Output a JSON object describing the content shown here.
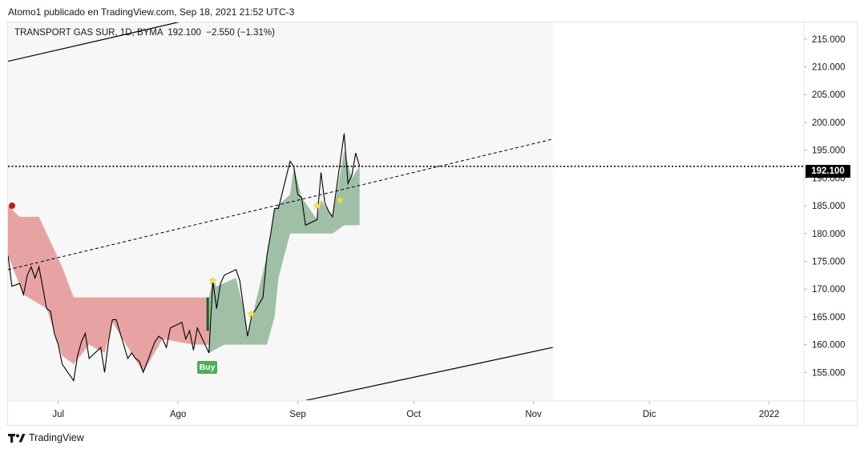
{
  "header": {
    "publisher_line": "Atomo1 publicado en TradingView.com, Sep 18, 2021 21:52 UTC-3"
  },
  "legend": {
    "text": "TRANSPORT GAS SUR, 1D, BYMA  192.100  −2.550 (−1.31%)"
  },
  "last_price": "192.100",
  "buy_label": "Buy",
  "footer": {
    "brand": "TradingView",
    "logo_icon": "tradingview-logo-icon"
  },
  "colors": {
    "price_line": "#000000",
    "bear_band": "#e7a3a3",
    "bull_band": "#9fbfa6",
    "dot_red": "#b71c1c",
    "star": "#f4e04d",
    "buy": "#4caf50",
    "grid_bg": "#f7f7f7"
  },
  "chart_data": {
    "type": "line",
    "title": "TRANSPORT GAS SUR, 1D, BYMA",
    "symbol_info": "192.100 −2.550 (−1.31%)",
    "x_ticks": [
      "Jul",
      "Ago",
      "Sep",
      "Oct",
      "Nov",
      "Dic",
      "2022"
    ],
    "y_ticks": [
      "155.000",
      "160.000",
      "165.000",
      "170.000",
      "175.000",
      "180.000",
      "185.000",
      "190.000",
      "195.000",
      "200.000",
      "205.000",
      "210.000",
      "215.000"
    ],
    "ylim": [
      150,
      218
    ],
    "xlim": [
      "2021-06-18",
      "2022-01-10"
    ],
    "last_price": 192.1,
    "series": [
      {
        "type": "close",
        "points": [
          [
            "2021-06-18",
            176.0
          ],
          [
            "2021-06-19",
            170.5
          ],
          [
            "2021-06-21",
            171.0
          ],
          [
            "2021-06-22",
            169.0
          ],
          [
            "2021-06-23",
            172.5
          ],
          [
            "2021-06-24",
            174.0
          ],
          [
            "2021-06-25",
            172.0
          ],
          [
            "2021-06-26",
            174.0
          ],
          [
            "2021-06-28",
            166.5
          ],
          [
            "2021-06-29",
            166.0
          ],
          [
            "2021-06-30",
            162.0
          ],
          [
            "2021-07-01",
            160.0
          ],
          [
            "2021-07-02",
            156.5
          ],
          [
            "2021-07-05",
            153.5
          ],
          [
            "2021-07-06",
            158.0
          ],
          [
            "2021-07-07",
            160.5
          ],
          [
            "2021-07-08",
            162.0
          ],
          [
            "2021-07-09",
            157.5
          ],
          [
            "2021-07-12",
            159.5
          ],
          [
            "2021-07-13",
            155.0
          ],
          [
            "2021-07-14",
            160.5
          ],
          [
            "2021-07-15",
            164.5
          ],
          [
            "2021-07-16",
            164.5
          ],
          [
            "2021-07-19",
            157.5
          ],
          [
            "2021-07-20",
            158.5
          ],
          [
            "2021-07-21",
            157.5
          ],
          [
            "2021-07-22",
            157.0
          ],
          [
            "2021-07-23",
            155.0
          ],
          [
            "2021-07-26",
            160.5
          ],
          [
            "2021-07-27",
            161.5
          ],
          [
            "2021-07-28",
            161.0
          ],
          [
            "2021-07-29",
            159.5
          ],
          [
            "2021-07-30",
            163.0
          ],
          [
            "2021-08-02",
            164.0
          ],
          [
            "2021-08-03",
            161.0
          ],
          [
            "2021-08-04",
            162.5
          ],
          [
            "2021-08-05",
            159.0
          ],
          [
            "2021-08-06",
            163.0
          ],
          [
            "2021-08-09",
            158.5
          ],
          [
            "2021-08-10",
            171.5
          ],
          [
            "2021-08-11",
            166.5
          ],
          [
            "2021-08-12",
            171.0
          ],
          [
            "2021-08-13",
            172.5
          ],
          [
            "2021-08-16",
            173.5
          ],
          [
            "2021-08-17",
            171.5
          ],
          [
            "2021-08-18",
            166.5
          ],
          [
            "2021-08-19",
            161.5
          ],
          [
            "2021-08-20",
            165.0
          ],
          [
            "2021-08-23",
            168.5
          ],
          [
            "2021-08-24",
            176.0
          ],
          [
            "2021-08-25",
            180.0
          ],
          [
            "2021-08-26",
            184.5
          ],
          [
            "2021-08-27",
            184.5
          ],
          [
            "2021-08-30",
            193.0
          ],
          [
            "2021-08-31",
            192.0
          ],
          [
            "2021-09-01",
            187.0
          ],
          [
            "2021-09-02",
            186.5
          ],
          [
            "2021-09-03",
            181.5
          ],
          [
            "2021-09-06",
            182.5
          ],
          [
            "2021-09-07",
            191.0
          ],
          [
            "2021-09-08",
            185.5
          ],
          [
            "2021-09-09",
            184.0
          ],
          [
            "2021-09-10",
            183.0
          ],
          [
            "2021-09-13",
            198.0
          ],
          [
            "2021-09-14",
            189.0
          ],
          [
            "2021-09-15",
            190.5
          ],
          [
            "2021-09-16",
            194.5
          ],
          [
            "2021-09-17",
            192.1
          ]
        ]
      },
      {
        "type": "bear_trailing_band",
        "upper": [
          [
            "2021-06-18",
            185.0
          ],
          [
            "2021-06-21",
            183.0
          ],
          [
            "2021-06-26",
            183.0
          ],
          [
            "2021-07-02",
            174.0
          ],
          [
            "2021-07-05",
            168.5
          ],
          [
            "2021-08-10",
            168.5
          ]
        ],
        "lower": [
          [
            "2021-06-18",
            176.0
          ],
          [
            "2021-06-22",
            169.0
          ],
          [
            "2021-06-28",
            166.5
          ],
          [
            "2021-07-02",
            158.0
          ],
          [
            "2021-07-05",
            156.5
          ],
          [
            "2021-07-09",
            160.0
          ],
          [
            "2021-07-13",
            158.5
          ],
          [
            "2021-07-15",
            164.0
          ],
          [
            "2021-07-23",
            155.0
          ],
          [
            "2021-07-28",
            161.0
          ],
          [
            "2021-08-05",
            160.0
          ],
          [
            "2021-08-10",
            160.0
          ]
        ]
      },
      {
        "type": "bull_trailing_band",
        "upper": [
          [
            "2021-08-09",
            168.5
          ],
          [
            "2021-08-10",
            171.5
          ],
          [
            "2021-08-11",
            170.5
          ],
          [
            "2021-08-16",
            172.0
          ],
          [
            "2021-08-18",
            166.5
          ],
          [
            "2021-08-19",
            161.5
          ],
          [
            "2021-08-24",
            176.0
          ],
          [
            "2021-08-26",
            184.5
          ],
          [
            "2021-08-30",
            187.0
          ],
          [
            "2021-08-31",
            192.0
          ],
          [
            "2021-09-02",
            186.5
          ],
          [
            "2021-09-06",
            182.5
          ],
          [
            "2021-09-07",
            186.0
          ],
          [
            "2021-09-10",
            183.0
          ],
          [
            "2021-09-13",
            195.0
          ],
          [
            "2021-09-15",
            190.0
          ],
          [
            "2021-09-17",
            192.1
          ]
        ],
        "lower": [
          [
            "2021-08-09",
            158.5
          ],
          [
            "2021-08-13",
            160.0
          ],
          [
            "2021-08-24",
            160.0
          ],
          [
            "2021-08-26",
            165.0
          ],
          [
            "2021-08-27",
            172.0
          ],
          [
            "2021-08-30",
            180.0
          ],
          [
            "2021-09-10",
            180.0
          ],
          [
            "2021-09-13",
            181.5
          ],
          [
            "2021-09-17",
            181.5
          ]
        ]
      },
      {
        "type": "trendline_dashed",
        "points": [
          [
            "2021-06-18",
            173.5
          ],
          [
            "2021-11-06",
            197.0
          ]
        ]
      },
      {
        "type": "channel_upper",
        "points": [
          [
            "2021-06-18",
            211.0
          ],
          [
            "2021-08-04",
            218.5
          ]
        ]
      },
      {
        "type": "channel_lower",
        "points": [
          [
            "2021-08-31",
            149.5
          ],
          [
            "2021-11-06",
            159.5
          ]
        ]
      }
    ],
    "markers": [
      {
        "type": "signal_dot",
        "date": "2021-06-18",
        "y": 185.0
      },
      {
        "type": "star",
        "date": "2021-08-10",
        "y": 171.5
      },
      {
        "type": "star",
        "date": "2021-08-20",
        "y": 165.5
      },
      {
        "type": "star",
        "date": "2021-09-06",
        "y": 185.0
      },
      {
        "type": "star",
        "date": "2021-09-12",
        "y": 186.0
      },
      {
        "type": "buy",
        "date": "2021-08-09",
        "y": 158.5,
        "label": "Buy"
      }
    ],
    "grid": false
  }
}
